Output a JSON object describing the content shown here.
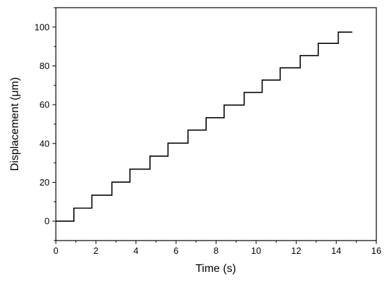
{
  "chart_data": {
    "type": "line",
    "title": "",
    "xlabel": "Time (s)",
    "ylabel": "Displacement (μm)",
    "xlim": [
      0,
      16
    ],
    "ylim": [
      -10,
      110
    ],
    "x_ticks": [
      0,
      2,
      4,
      6,
      8,
      10,
      12,
      14,
      16
    ],
    "y_ticks": [
      0,
      20,
      40,
      60,
      80,
      100
    ],
    "grid": false,
    "legend": "none",
    "line_color": "#000000",
    "series": [
      {
        "step_times": [
          0.9,
          1.8,
          2.8,
          3.7,
          4.7,
          5.6,
          6.6,
          7.5,
          8.4,
          9.4,
          10.3,
          11.2,
          12.2,
          13.1,
          14.1
        ],
        "plateau_values": [
          0,
          6.7,
          13.4,
          20.1,
          26.8,
          33.5,
          40.2,
          46.9,
          53.3,
          59.8,
          66.3,
          72.7,
          79.0,
          85.3,
          91.6,
          97.4
        ],
        "x_start": 0,
        "x_end": 14.8
      }
    ]
  }
}
